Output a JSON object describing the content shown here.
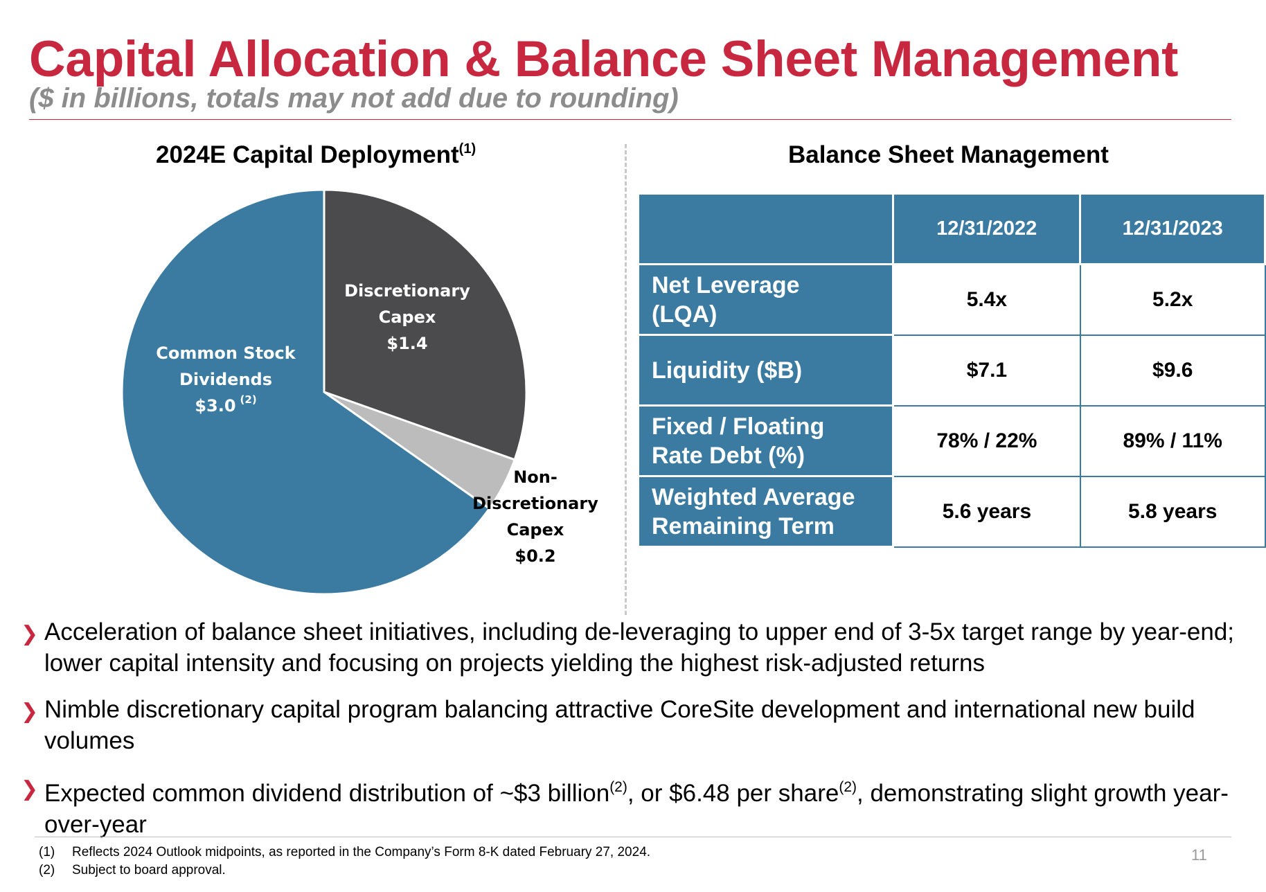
{
  "header": {
    "title": "Capital Allocation & Balance Sheet Management",
    "subtitle": "($ in billions, totals may not add due to rounding)"
  },
  "chart_data": {
    "type": "pie",
    "title": "2024E Capital Deployment",
    "title_footnote": "(1)",
    "slices": [
      {
        "name": "Discretionary Capex",
        "label_lines": [
          "Discretionary",
          "Capex"
        ],
        "value": 1.4,
        "value_text": "$1.4",
        "color": "#4b4b4d"
      },
      {
        "name": "Non-Discretionary Capex",
        "label_lines": [
          "Non-",
          "Discretionary",
          "Capex"
        ],
        "value": 0.2,
        "value_text": "$0.2",
        "color": "#bcbcbc"
      },
      {
        "name": "Common Stock Dividends",
        "label_lines": [
          "Common Stock",
          "Dividends"
        ],
        "value": 3.0,
        "value_text": "$3.0",
        "footnote": "(2)",
        "color": "#3b7ba1"
      }
    ],
    "start_angle": "12 o'clock",
    "direction": "clockwise",
    "legend": "none"
  },
  "balance_sheet": {
    "title": "Balance Sheet Management",
    "columns": [
      "12/31/2022",
      "12/31/2023"
    ],
    "rows": [
      {
        "label_lines": [
          "Net Leverage",
          "(LQA)"
        ],
        "values": [
          "5.4x",
          "5.2x"
        ]
      },
      {
        "label_lines": [
          "Liquidity ($B)"
        ],
        "values": [
          "$7.1",
          "$9.6"
        ]
      },
      {
        "label_lines": [
          "Fixed / Floating",
          "Rate Debt (%)"
        ],
        "values": [
          "78% / 22%",
          "89% / 11%"
        ]
      },
      {
        "label_lines": [
          "Weighted Average",
          "Remaining Term"
        ],
        "values": [
          "5.6 years",
          "5.8 years"
        ]
      }
    ],
    "colors": {
      "header_bg": "#3b7ba1",
      "header_text": "#ffffff"
    }
  },
  "bullets": [
    {
      "text": "Acceleration of balance sheet initiatives, including de-leveraging to upper end of 3-5x target range by year-end; lower capital intensity and focusing on projects yielding the highest risk-adjusted returns"
    },
    {
      "text": "Nimble discretionary capital program balancing attractive CoreSite development and international new build volumes"
    },
    {
      "text_parts": [
        "Expected common dividend distribution of ~$3 billion",
        "(2)",
        ", or $6.48 per share",
        "(2)",
        ", demonstrating slight growth year-over-year"
      ]
    }
  ],
  "footnotes": [
    {
      "num": "(1)",
      "text": "Reflects 2024 Outlook midpoints, as reported in the Company’s Form 8-K dated February 27, 2024."
    },
    {
      "num": "(2)",
      "text": "Subject to board approval."
    }
  ],
  "page_number": "11",
  "colors": {
    "accent": "#c8283f",
    "subtitle": "#8c8c8c",
    "bullet_marker": "#c8283f"
  }
}
